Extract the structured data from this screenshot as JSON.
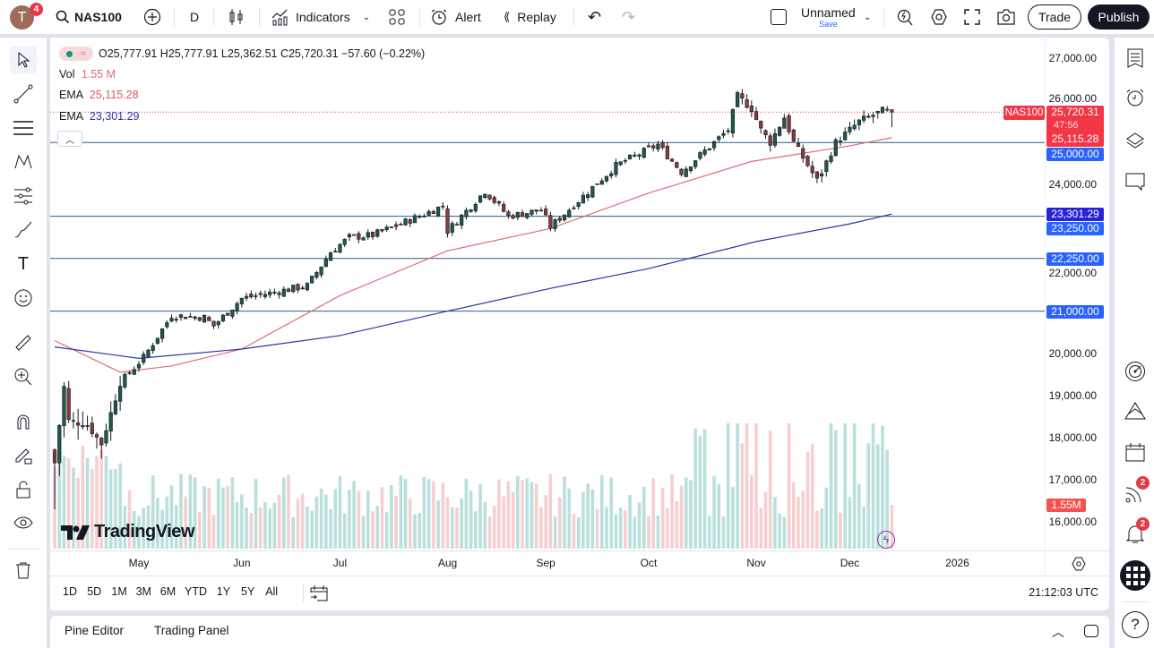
{
  "topbar": {
    "avatar_letter": "T",
    "avatar_badge": "4",
    "symbol": "NAS100",
    "interval": "D",
    "indicators_label": "Indicators",
    "alert_label": "Alert",
    "replay_label": "Replay",
    "layout_name": "Unnamed",
    "save_label": "Save",
    "trade_label": "Trade",
    "publish_label": "Publish"
  },
  "legend": {
    "ohlc": "O25,777.91 H25,777.91 L25,362.51 C25,720.31 −57.60 (−0.22%)",
    "vol_label": "Vol",
    "vol_value": "1.55 M",
    "ema1_label": "EMA",
    "ema1_value": "25,115.28",
    "ema2_label": "EMA",
    "ema2_value": "23,301.29"
  },
  "colors": {
    "up": "#1e5a4c",
    "down": "#8a3b3b",
    "vol_up": "#b9e0dc",
    "vol_down": "#f6cfd0",
    "ema_fast": "#e06c75",
    "ema_slow": "#2b33a6",
    "hline": "#2e5f86",
    "tag_blue": "#2962ff",
    "tag_red": "#f23645"
  },
  "price_axis": {
    "ticks": [
      "27,000.00",
      "26,000.00",
      "24,000.00",
      "22,000.00",
      "20,000.00",
      "19,000.00",
      "18,000.00",
      "17,000.00",
      "16,000.00"
    ],
    "tick_values": [
      27000,
      26000,
      24000,
      22000,
      20000,
      19000,
      18000,
      17000,
      16000
    ],
    "symbol_tag": "NAS100",
    "last_price": "25,720.31",
    "countdown": "47:56",
    "ema1_tag": "25,115.28",
    "ema2_tag": "23,301.29",
    "volume_tag": "1.55M"
  },
  "horizontal_lines": [
    {
      "value": 25000,
      "label": "25,000.00"
    },
    {
      "value": 23250,
      "label": "23,250.00"
    },
    {
      "value": 22250,
      "label": "22,250.00"
    },
    {
      "value": 21000,
      "label": "21,000.00"
    }
  ],
  "time_axis": {
    "months": [
      {
        "label": "May",
        "date": "2025-05-01"
      },
      {
        "label": "Jun",
        "date": "2025-06-02"
      },
      {
        "label": "Jul",
        "date": "2025-07-01"
      },
      {
        "label": "Aug",
        "date": "2025-08-01"
      },
      {
        "label": "Sep",
        "date": "2025-09-01"
      },
      {
        "label": "Oct",
        "date": "2025-10-01"
      },
      {
        "label": "Nov",
        "date": "2025-11-03"
      },
      {
        "label": "Dec",
        "date": "2025-12-01"
      },
      {
        "label": "2026",
        "date": "2026-01-01"
      }
    ]
  },
  "price_path": [
    [
      "2025-04-07",
      17400
    ],
    [
      "2025-04-09",
      19200
    ],
    [
      "2025-04-10",
      18400
    ],
    [
      "2025-04-16",
      18300
    ],
    [
      "2025-04-21",
      17850
    ],
    [
      "2025-04-25",
      19300
    ],
    [
      "2025-05-02",
      19900
    ],
    [
      "2025-05-12",
      20900
    ],
    [
      "2025-05-21",
      20850
    ],
    [
      "2025-05-23",
      20650
    ],
    [
      "2025-06-02",
      21300
    ],
    [
      "2025-06-20",
      21600
    ],
    [
      "2025-06-27",
      22400
    ],
    [
      "2025-07-03",
      22750
    ],
    [
      "2025-07-10",
      22800
    ],
    [
      "2025-07-25",
      23300
    ],
    [
      "2025-07-31",
      23500
    ],
    [
      "2025-08-01",
      22900
    ],
    [
      "2025-08-13",
      23850
    ],
    [
      "2025-08-20",
      23250
    ],
    [
      "2025-08-29",
      23400
    ],
    [
      "2025-09-02",
      23000
    ],
    [
      "2025-09-22",
      24450
    ],
    [
      "2025-10-03",
      24950
    ],
    [
      "2025-10-10",
      24300
    ],
    [
      "2025-10-15",
      24600
    ],
    [
      "2025-10-24",
      25300
    ],
    [
      "2025-10-28",
      26100
    ],
    [
      "2025-10-31",
      25800
    ],
    [
      "2025-11-04",
      25300
    ],
    [
      "2025-11-06",
      25000
    ],
    [
      "2025-11-11",
      25600
    ],
    [
      "2025-11-13",
      25000
    ],
    [
      "2025-11-20",
      24100
    ],
    [
      "2025-11-21",
      24300
    ],
    [
      "2025-11-26",
      25000
    ],
    [
      "2025-12-03",
      25500
    ],
    [
      "2025-12-10",
      25750
    ],
    [
      "2025-12-12",
      25720.31
    ]
  ],
  "ema_fast_path": [
    [
      "2025-04-07",
      20300
    ],
    [
      "2025-04-25",
      19550
    ],
    [
      "2025-05-12",
      19700
    ],
    [
      "2025-06-02",
      20100
    ],
    [
      "2025-07-01",
      21370
    ],
    [
      "2025-08-01",
      22430
    ],
    [
      "2025-09-02",
      22960
    ],
    [
      "2025-10-01",
      23800
    ],
    [
      "2025-10-31",
      24550
    ],
    [
      "2025-12-01",
      24920
    ],
    [
      "2025-12-12",
      25115.28
    ]
  ],
  "ema_slow_path": [
    [
      "2025-04-07",
      20150
    ],
    [
      "2025-05-01",
      19880
    ],
    [
      "2025-06-02",
      20100
    ],
    [
      "2025-07-01",
      20420
    ],
    [
      "2025-08-01",
      21000
    ],
    [
      "2025-09-02",
      21540
    ],
    [
      "2025-10-01",
      22010
    ],
    [
      "2025-11-03",
      22650
    ],
    [
      "2025-12-01",
      23070
    ],
    [
      "2025-12-12",
      23301.29
    ]
  ],
  "watermark": "TradingView",
  "bottom_toolbar": {
    "ranges": [
      "1D",
      "5D",
      "1M",
      "3M",
      "6M",
      "YTD",
      "1Y",
      "5Y",
      "All"
    ],
    "clock": "21:12:03 UTC"
  },
  "bottom_panel": {
    "pine_editor": "Pine Editor",
    "trading_panel": "Trading Panel"
  },
  "rightbar": {
    "ideas_badge": "2",
    "alerts_badge": "2"
  }
}
